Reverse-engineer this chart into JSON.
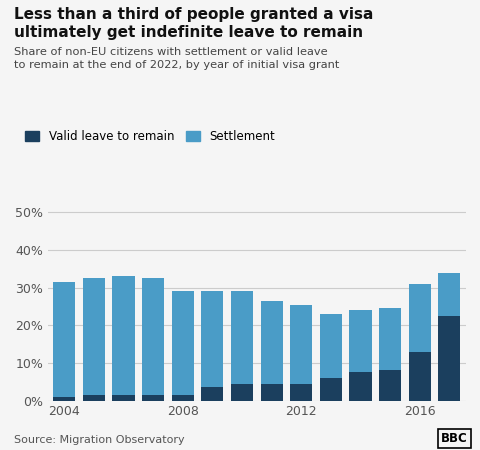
{
  "years": [
    2004,
    2005,
    2006,
    2007,
    2008,
    2009,
    2010,
    2011,
    2012,
    2013,
    2014,
    2015,
    2016,
    2017
  ],
  "valid_leave_values": [
    1.0,
    1.5,
    1.5,
    1.5,
    1.5,
    3.5,
    4.5,
    4.5,
    4.5,
    6.0,
    7.5,
    8.0,
    13.0,
    22.5
  ],
  "total_values": [
    31.5,
    32.5,
    33.0,
    32.5,
    29.0,
    29.0,
    29.0,
    26.5,
    25.5,
    23.0,
    24.0,
    24.5,
    31.0,
    34.0
  ],
  "color_settlement": "#4a9cc7",
  "color_valid_leave": "#1b3f5e",
  "background_color": "#f5f5f5",
  "title_line1": "Less than a third of people granted a visa",
  "title_line2": "ultimately get indefinite leave to remain",
  "subtitle": "Share of non-EU citizens with settlement or valid leave\nto remain at the end of 2022, by year of initial visa grant",
  "legend_valid": "Valid leave to remain",
  "legend_settlement": "Settlement",
  "source": "Source: Migration Observatory",
  "ylim": [
    0,
    55
  ],
  "yticks": [
    0,
    10,
    20,
    30,
    40,
    50
  ],
  "bar_width": 0.75
}
